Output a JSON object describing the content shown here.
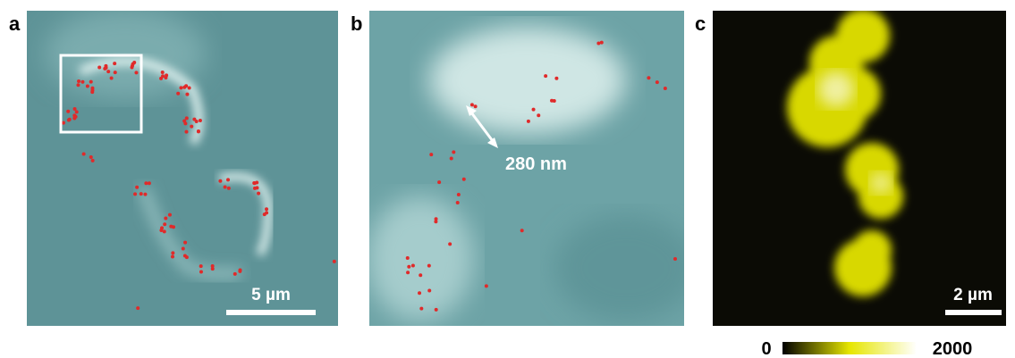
{
  "panels": {
    "a": {
      "label": "a",
      "scale_bar": "5 µm"
    },
    "b": {
      "label": "b",
      "annotation": "280 nm"
    },
    "c": {
      "label": "c",
      "scale_bar": "2 µm"
    }
  },
  "colorbar": {
    "min": "0",
    "max": "2000"
  }
}
